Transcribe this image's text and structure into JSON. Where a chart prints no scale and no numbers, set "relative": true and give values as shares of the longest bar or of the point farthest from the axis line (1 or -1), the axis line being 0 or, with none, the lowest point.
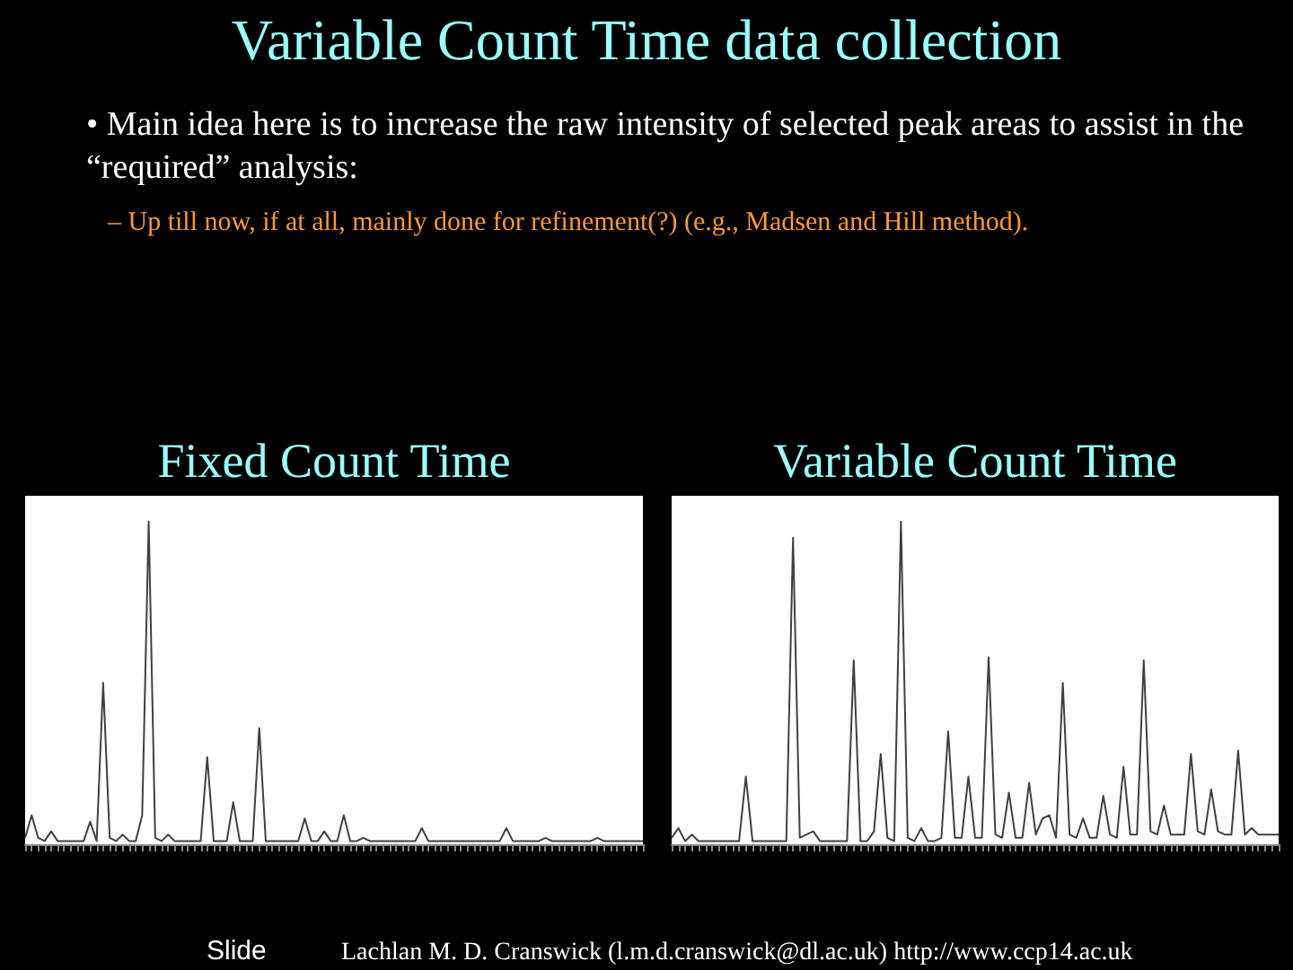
{
  "chart_data": [
    {
      "type": "other",
      "title": "Variable Count Time data collection",
      "annotations": [
        "• Main idea here is to increase the raw intensity of selected peak areas to assist in the “required” analysis:",
        "– Up till now, if at all, mainly done for refinement(?) (e.g., Madsen and Hill method).",
        "Slide",
        "Lachlan M. D. Cranswick (l.m.d.cranswick@dl.ac.uk) http://www.ccp14.ac.uk"
      ]
    },
    {
      "type": "line",
      "title": "Fixed Count Time",
      "relative": true,
      "tick_labels": false,
      "categories": [
        null,
        null,
        null,
        null,
        null,
        null,
        null,
        null,
        null,
        null,
        null,
        null,
        null,
        null,
        null,
        null,
        null,
        null,
        null,
        null,
        null,
        null,
        null,
        null,
        null,
        null,
        null,
        null,
        null,
        null,
        null,
        null,
        null,
        null,
        null,
        null,
        null,
        null,
        null,
        null,
        null,
        null,
        null,
        null,
        null,
        null,
        null,
        null,
        null,
        null,
        null,
        null,
        null,
        null,
        null,
        null,
        null,
        null,
        null,
        null,
        null,
        null,
        null,
        null,
        null,
        null,
        null,
        null,
        null,
        null,
        null,
        null,
        null,
        null,
        null,
        null,
        null,
        null,
        null,
        null,
        null,
        null,
        null,
        null,
        null,
        null,
        null,
        null,
        null,
        null,
        null,
        null,
        null,
        null,
        null,
        null
      ],
      "series": [
        {
          "color": "#404040",
          "values": [
            0.02,
            0.09,
            0.02,
            0.01,
            0.04,
            0.01,
            0.01,
            0.01,
            0.01,
            0.01,
            0.07,
            0.01,
            0.5,
            0.02,
            0.01,
            0.03,
            0.01,
            0.01,
            0.09,
            1,
            0.02,
            0.01,
            0.03,
            0.01,
            0.01,
            0.01,
            0.01,
            0.01,
            0.27,
            0.01,
            0.01,
            0.01,
            0.13,
            0.01,
            0.01,
            0.01,
            0.36,
            0.01,
            0.01,
            0.01,
            0.01,
            0.01,
            0.01,
            0.08,
            0.01,
            0.01,
            0.04,
            0.01,
            0.01,
            0.09,
            0.01,
            0.01,
            0.02,
            0.01,
            0.01,
            0.01,
            0.01,
            0.01,
            0.01,
            0.01,
            0.01,
            0.05,
            0.01,
            0.01,
            0.01,
            0.01,
            0.01,
            0.01,
            0.01,
            0.01,
            0.01,
            0.01,
            0.01,
            0.01,
            0.05,
            0.01,
            0.01,
            0.01,
            0.01,
            0.01,
            0.02,
            0.01,
            0.01,
            0.01,
            0.01,
            0.01,
            0.01,
            0.01,
            0.02,
            0.01,
            0.01,
            0.01,
            0.01,
            0.01,
            0.01,
            0.01
          ]
        }
      ]
    },
    {
      "type": "line",
      "title": "Variable Count Time",
      "relative": true,
      "tick_labels": false,
      "categories": [
        null,
        null,
        null,
        null,
        null,
        null,
        null,
        null,
        null,
        null,
        null,
        null,
        null,
        null,
        null,
        null,
        null,
        null,
        null,
        null,
        null,
        null,
        null,
        null,
        null,
        null,
        null,
        null,
        null,
        null,
        null,
        null,
        null,
        null,
        null,
        null,
        null,
        null,
        null,
        null,
        null,
        null,
        null,
        null,
        null,
        null,
        null,
        null,
        null,
        null,
        null,
        null,
        null,
        null,
        null,
        null,
        null,
        null,
        null,
        null,
        null,
        null,
        null,
        null,
        null,
        null,
        null,
        null,
        null,
        null,
        null,
        null,
        null,
        null,
        null,
        null,
        null,
        null,
        null,
        null,
        null,
        null,
        null,
        null,
        null,
        null,
        null,
        null,
        null,
        null,
        null
      ],
      "series": [
        {
          "color": "#404040",
          "values": [
            0.02,
            0.05,
            0.01,
            0.03,
            0.01,
            0.01,
            0.01,
            0.01,
            0.01,
            0.01,
            0.01,
            0.21,
            0.01,
            0.01,
            0.01,
            0.01,
            0.01,
            0.01,
            0.95,
            0.02,
            0.03,
            0.04,
            0.01,
            0.01,
            0.01,
            0.01,
            0.01,
            0.57,
            0.01,
            0.01,
            0.04,
            0.28,
            0.02,
            0.01,
            1,
            0.02,
            0.01,
            0.05,
            0.01,
            0.01,
            0.02,
            0.35,
            0.02,
            0.02,
            0.21,
            0.02,
            0.02,
            0.58,
            0.03,
            0.02,
            0.16,
            0.02,
            0.02,
            0.19,
            0.03,
            0.08,
            0.09,
            0.02,
            0.5,
            0.03,
            0.02,
            0.08,
            0.02,
            0.02,
            0.15,
            0.03,
            0.02,
            0.24,
            0.03,
            0.03,
            0.57,
            0.04,
            0.03,
            0.12,
            0.03,
            0.03,
            0.03,
            0.28,
            0.04,
            0.03,
            0.17,
            0.04,
            0.03,
            0.03,
            0.29,
            0.03,
            0.05,
            0.03,
            0.03,
            0.03,
            0.03
          ]
        }
      ]
    }
  ]
}
